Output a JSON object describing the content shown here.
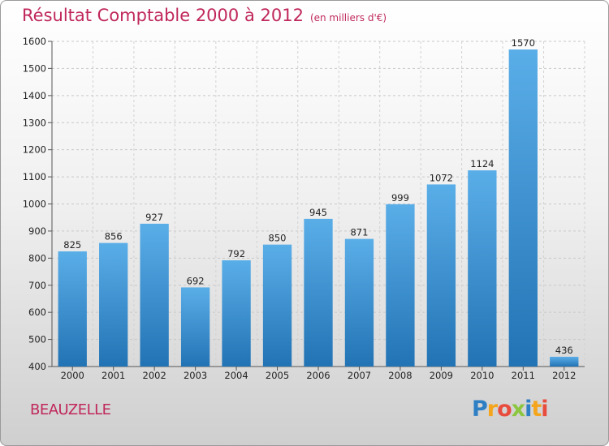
{
  "header": {
    "title": "Résultat Comptable 2000 à 2012",
    "subtitle": "(en milliers d'€)"
  },
  "footer": {
    "town": "BEAUZELLE",
    "logo_letters": [
      "P",
      "r",
      "o",
      "x",
      "i",
      "t",
      "i"
    ]
  },
  "colors": {
    "bar_top": "#5aaee8",
    "bar_bottom": "#2273b4",
    "title": "#c0285a"
  },
  "chart_data": {
    "type": "bar",
    "title": "Résultat Comptable 2000 à 2012",
    "subtitle": "(en milliers d'€)",
    "categories": [
      "2000",
      "2001",
      "2002",
      "2003",
      "2004",
      "2005",
      "2006",
      "2007",
      "2008",
      "2009",
      "2010",
      "2011",
      "2012"
    ],
    "values": [
      825,
      856,
      927,
      692,
      792,
      850,
      945,
      871,
      999,
      1072,
      1124,
      1570,
      436
    ],
    "ylim": [
      400,
      1600
    ],
    "yticks": [
      400,
      500,
      600,
      700,
      800,
      900,
      1000,
      1100,
      1200,
      1300,
      1400,
      1500,
      1600
    ],
    "grid": true,
    "data_labels": true
  }
}
